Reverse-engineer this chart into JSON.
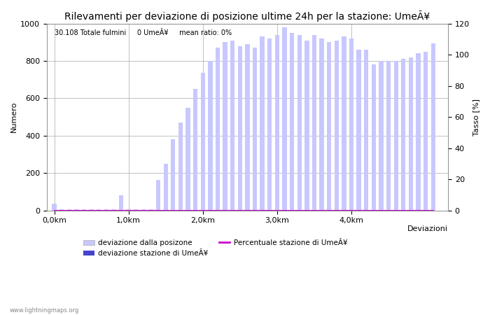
{
  "title": "Rilevamenti per deviazione di posizione ultime 24h per la stazione: UmeÃ¥",
  "subtitle": "30.108 Totale fulmini     0 UmeÃ¥     mean ratio: 0%",
  "xlabel": "Deviazioni",
  "ylabel_left": "Numero",
  "ylabel_right": "Tasso [%]",
  "ylim_left": [
    0,
    1000
  ],
  "ylim_right": [
    0,
    120
  ],
  "xtick_labels": [
    "0,0km",
    "1,0km",
    "2,0km",
    "3,0km",
    "4,0km"
  ],
  "ytick_left": [
    0,
    200,
    400,
    600,
    800,
    1000
  ],
  "ytick_right": [
    0,
    20,
    40,
    60,
    80,
    100,
    120
  ],
  "bar_values": [
    35,
    5,
    5,
    5,
    5,
    5,
    5,
    5,
    5,
    80,
    5,
    5,
    5,
    5,
    165,
    250,
    380,
    470,
    550,
    650,
    735,
    800,
    870,
    900,
    910,
    880,
    890,
    870,
    930,
    920,
    940,
    980,
    950,
    940,
    910,
    940,
    920,
    900,
    910,
    930,
    920,
    860,
    860,
    780,
    800,
    800,
    800,
    810,
    820,
    840,
    850,
    895
  ],
  "station_bar_values": [
    0,
    0,
    0,
    0,
    0,
    0,
    0,
    0,
    0,
    0,
    0,
    0,
    0,
    0,
    0,
    0,
    0,
    0,
    0,
    0,
    0,
    0,
    0,
    0,
    0,
    0,
    0,
    0,
    0,
    0,
    0,
    0,
    0,
    0,
    0,
    0,
    0,
    0,
    0,
    0,
    0,
    0,
    0,
    0,
    0,
    0,
    0,
    0,
    0,
    0,
    0,
    0
  ],
  "ratio_values": [
    0,
    0,
    0,
    0,
    0,
    0,
    0,
    0,
    0,
    0,
    0,
    0,
    0,
    0,
    0,
    0,
    0,
    0,
    0,
    0,
    0,
    0,
    0,
    0,
    0,
    0,
    0,
    0,
    0,
    0,
    0,
    0,
    0,
    0,
    0,
    0,
    0,
    0,
    0,
    0,
    0,
    0,
    0,
    0,
    0,
    0,
    0,
    0,
    0,
    0,
    0,
    0
  ],
  "bar_color_light": "#c8c8ff",
  "bar_color_dark": "#4444cc",
  "ratio_color": "#cc00cc",
  "grid_color": "#aaaaaa",
  "bg_color": "#ffffff",
  "legend_label_light": "deviazione dalla posizone",
  "legend_label_dark": "deviazione stazione di UmeÃ¥",
  "legend_label_ratio": "Percentuale stazione di UmeÃ¥",
  "watermark": "www.lightningmaps.org",
  "title_fontsize": 10,
  "axis_fontsize": 8,
  "tick_fontsize": 8,
  "n_bars": 52,
  "km_per_bar": 0.1,
  "bars_per_km": 10
}
